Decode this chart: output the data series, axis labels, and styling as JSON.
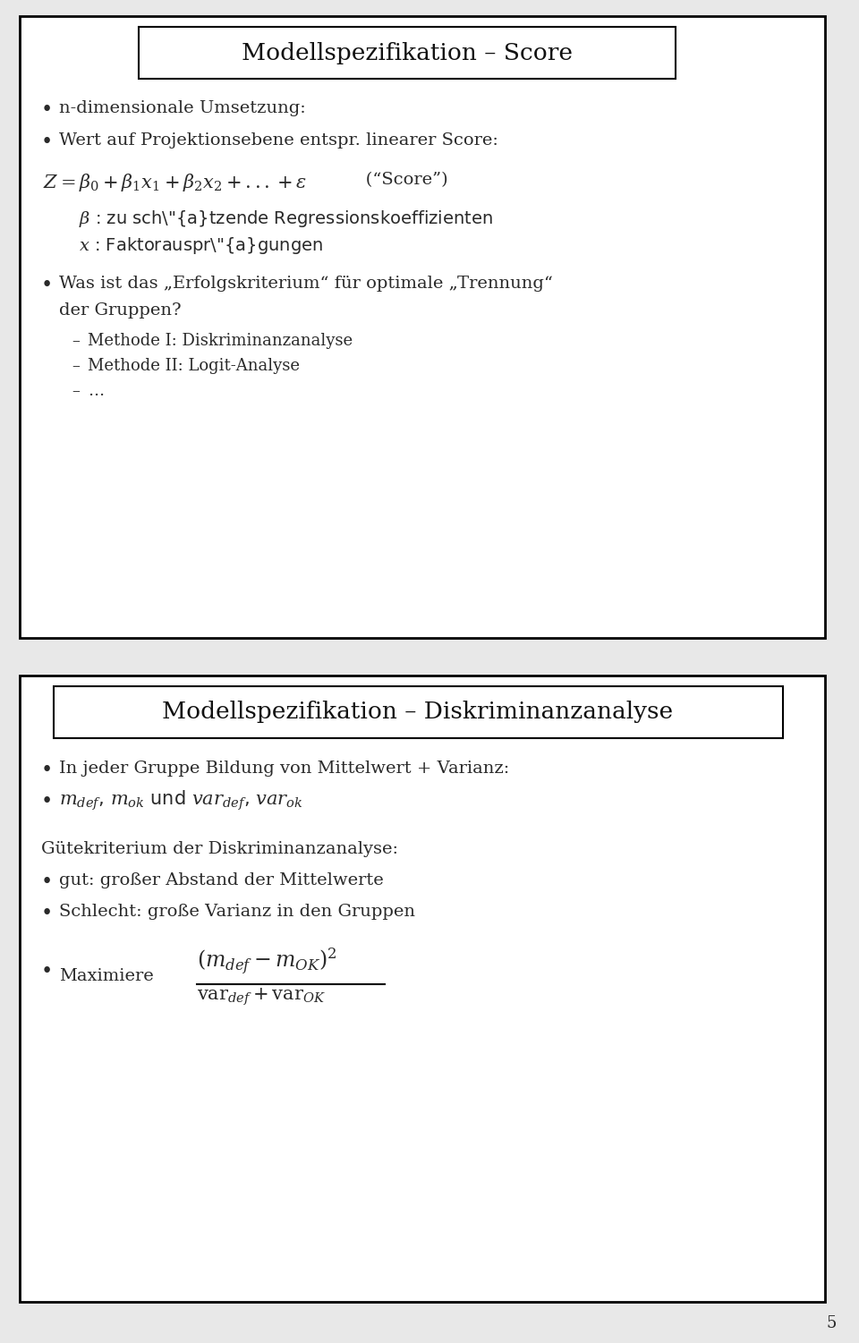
{
  "background_color": "#e8e8e8",
  "panel_bg": "#ffffff",
  "border_color": "#000000",
  "font_color": "#2a2a2a",
  "panel1_title": "Modellspezifikation – Score",
  "panel2_title": "Modellspezifikation – Diskriminanzanalyse",
  "page_number": "5",
  "font_size_title": 19,
  "font_size_body": 14,
  "font_size_sub": 13
}
